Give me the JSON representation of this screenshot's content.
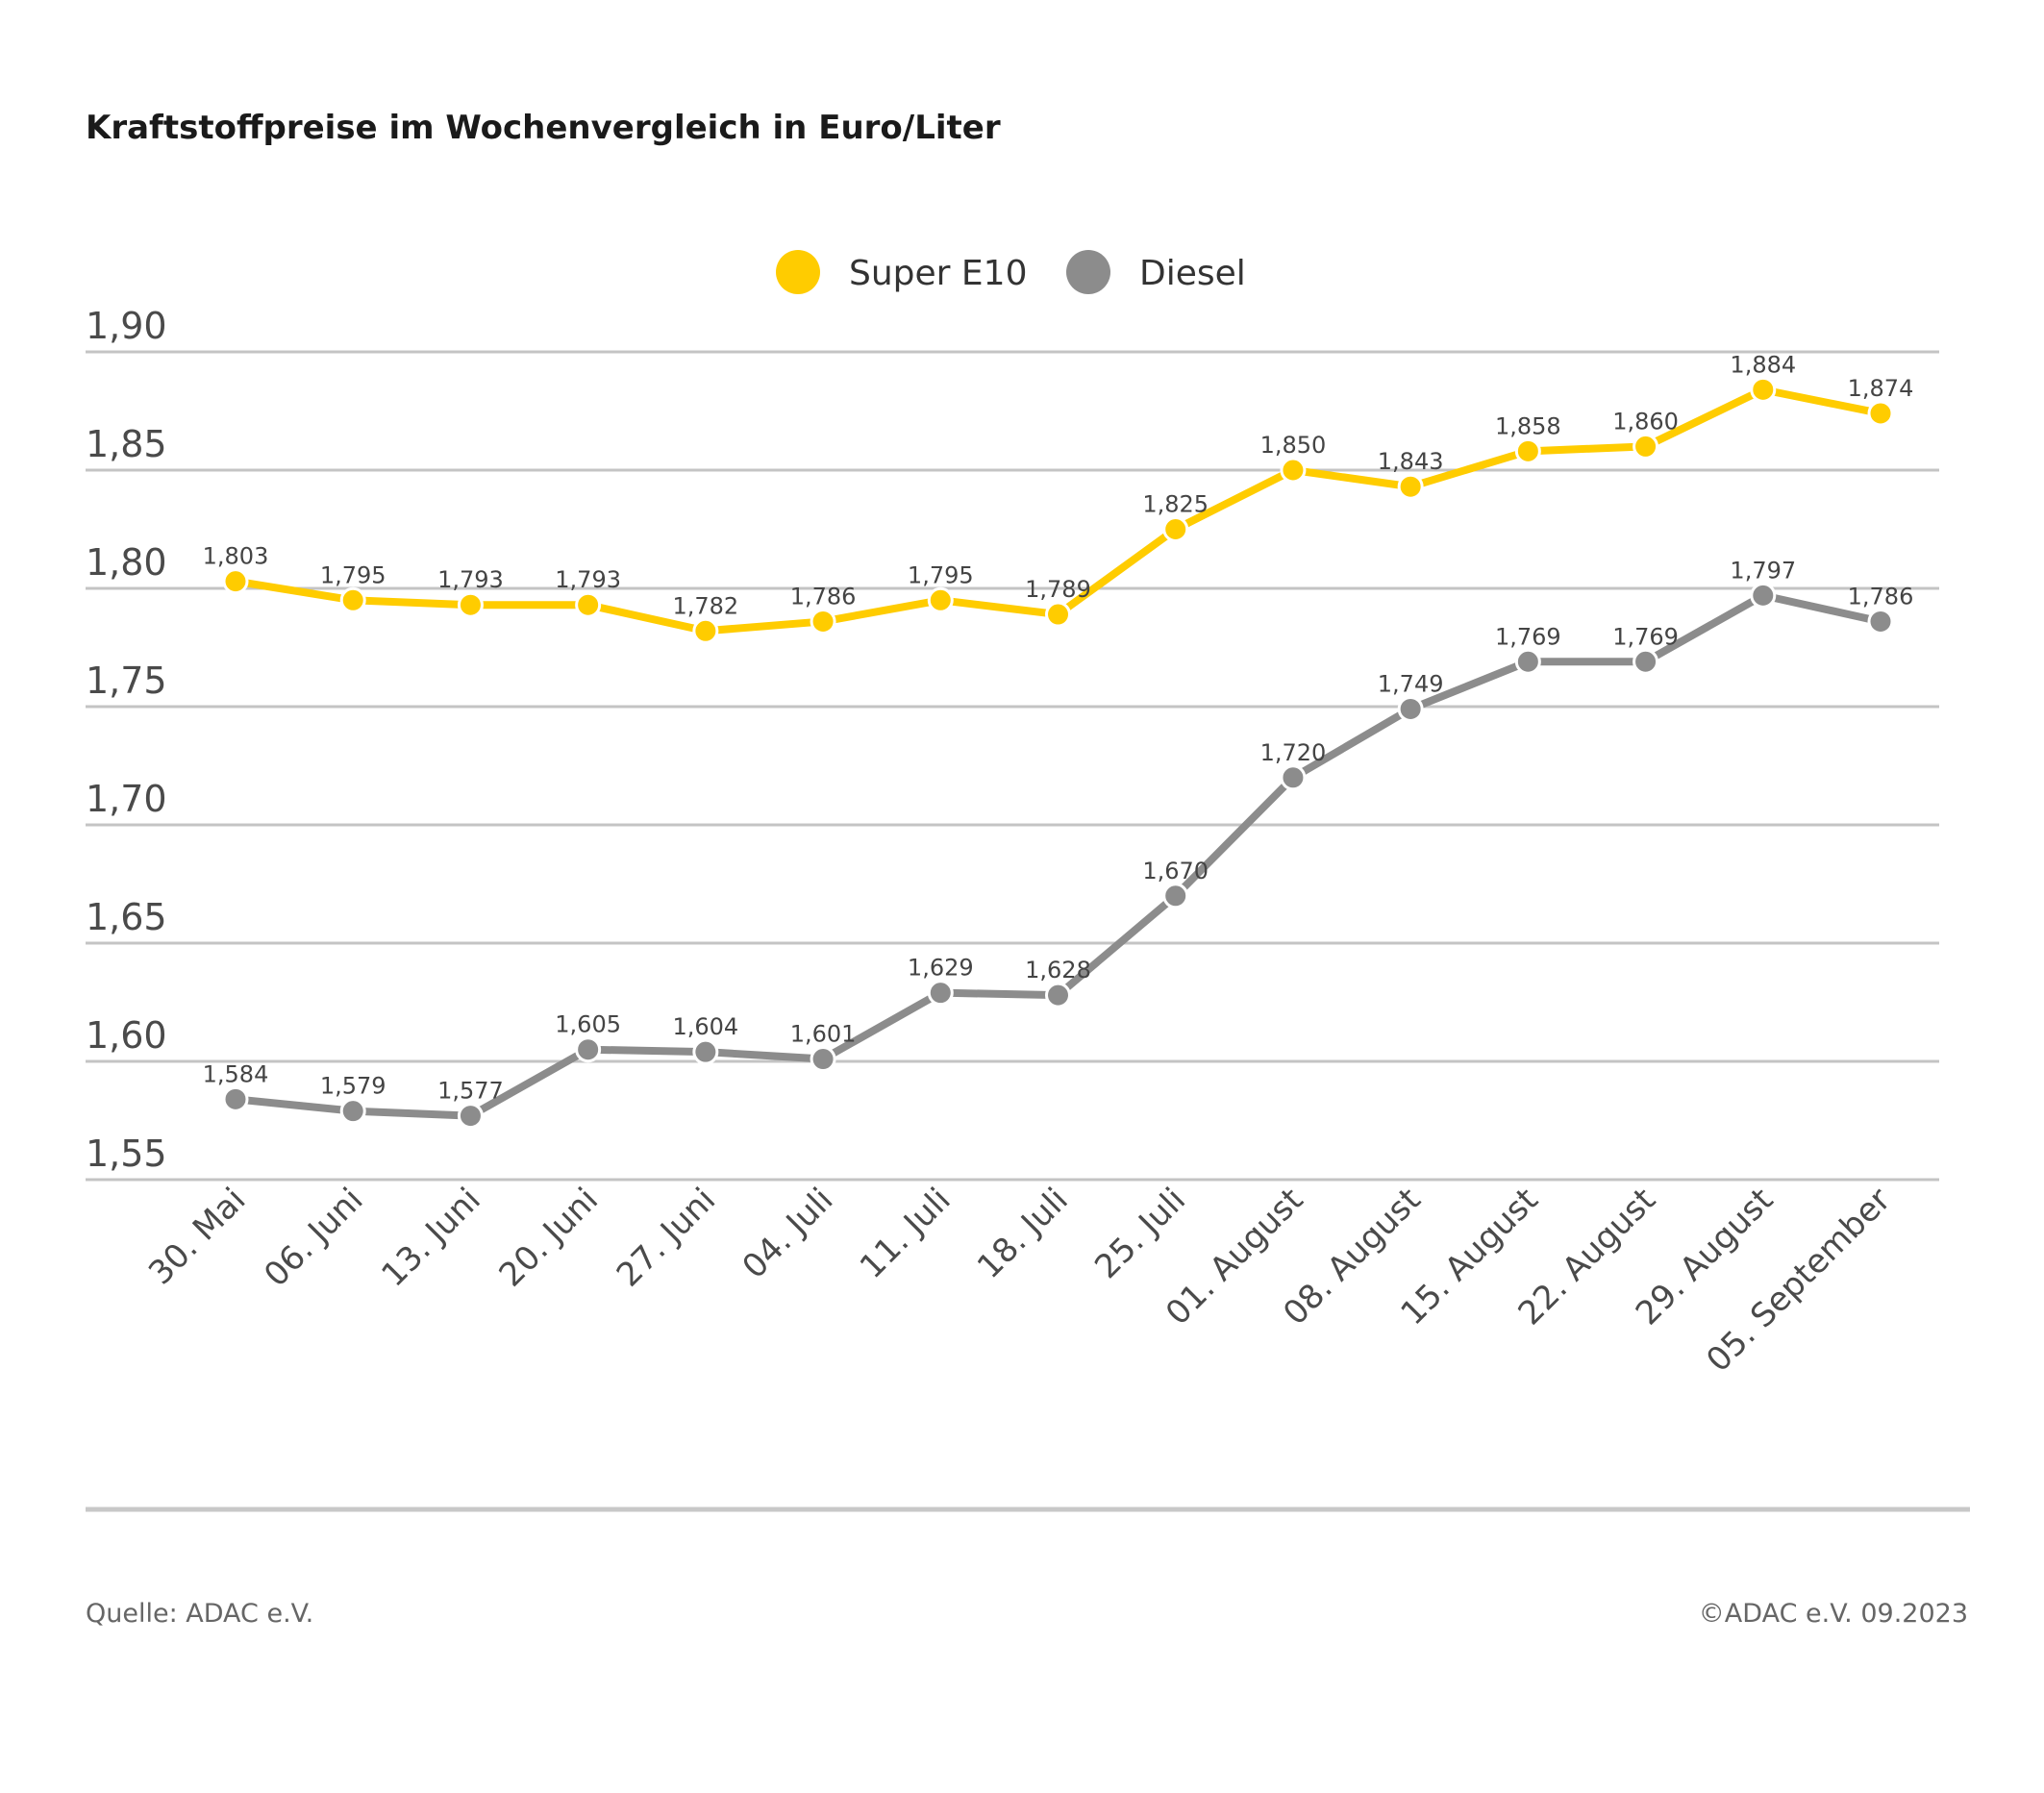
{
  "chart_data": {
    "type": "line",
    "title": "Kraftstoffpreise im Wochenvergleich in Euro/Liter",
    "categories": [
      "30. Mai",
      "06. Juni",
      "13. Juni",
      "20. Juni",
      "27. Juni",
      "04. Juli",
      "11. Juli",
      "18. Juli",
      "25. Juli",
      "01. August",
      "08. August",
      "15. August",
      "22. August",
      "29. August",
      "05. September"
    ],
    "series": [
      {
        "name": "Super E10",
        "color": "#FFCC00",
        "values": [
          1.803,
          1.795,
          1.793,
          1.793,
          1.782,
          1.786,
          1.795,
          1.789,
          1.825,
          1.85,
          1.843,
          1.858,
          1.86,
          1.884,
          1.874
        ],
        "labels": [
          "1,803",
          "1,795",
          "1,793",
          "1,793",
          "1,782",
          "1,786",
          "1,795",
          "1,789",
          "1,825",
          "1,850",
          "1,843",
          "1,858",
          "1,860",
          "1,884",
          "1,874"
        ]
      },
      {
        "name": "Diesel",
        "color": "#8C8C8C",
        "values": [
          1.584,
          1.579,
          1.577,
          1.605,
          1.604,
          1.601,
          1.629,
          1.628,
          1.67,
          1.72,
          1.749,
          1.769,
          1.769,
          1.797,
          1.786
        ],
        "labels": [
          "1,584",
          "1,579",
          "1,577",
          "1,605",
          "1,604",
          "1,601",
          "1,629",
          "1,628",
          "1,670",
          "1,720",
          "1,749",
          "1,769",
          "1,769",
          "1,797",
          "1,786"
        ]
      }
    ],
    "ylim": [
      1.55,
      1.9
    ],
    "yticks": [
      "1,55",
      "1,60",
      "1,65",
      "1,70",
      "1,75",
      "1,80",
      "1,85",
      "1,90"
    ],
    "grid": true,
    "legend_position": "top-center"
  },
  "footer": {
    "source": "Quelle: ADAC e.V.",
    "copyright": "©ADAC e.V. 09.2023"
  }
}
